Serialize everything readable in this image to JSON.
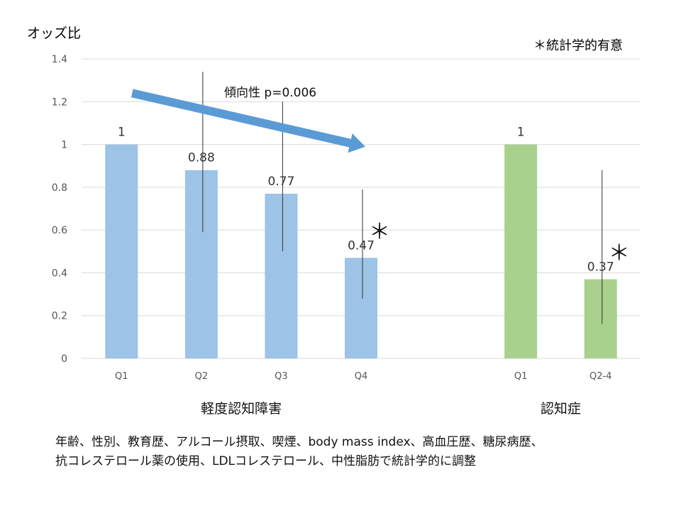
{
  "chart_data": {
    "type": "bar",
    "ylabel": "オッズ比",
    "ylim": [
      0,
      1.4
    ],
    "yticks": [
      "0",
      "0.2",
      "0.4",
      "0.6",
      "0.8",
      "1",
      "1.2",
      "1.4"
    ],
    "grid": true,
    "legend_note": "＊統計学的有意",
    "trend_label": "傾向性 p=0.006",
    "colors": {
      "group1": "#9dc3e6",
      "group2": "#a9d18e",
      "arrow": "#5b9bd5"
    },
    "groups": [
      {
        "label": "軽度認知障害",
        "categories": [
          "Q1",
          "Q2",
          "Q3",
          "Q4"
        ],
        "values": [
          1,
          0.88,
          0.77,
          0.47
        ],
        "value_labels": [
          "1",
          "0.88",
          "0.77",
          "0.47"
        ],
        "ci_low": [
          null,
          0.59,
          0.5,
          0.28
        ],
        "ci_high": [
          null,
          1.34,
          1.2,
          0.79
        ],
        "significant": [
          false,
          false,
          false,
          true
        ]
      },
      {
        "label": "認知症",
        "categories": [
          "Q1",
          "Q2-4"
        ],
        "values": [
          1,
          0.37
        ],
        "value_labels": [
          "1",
          "0.37"
        ],
        "ci_low": [
          null,
          0.16
        ],
        "ci_high": [
          null,
          0.88
        ],
        "significant": [
          false,
          true
        ]
      }
    ]
  },
  "significance_mark": "＊",
  "footnote": "年齢、性別、教育歴、アルコール摂取、喫煙、body mass index、高血圧歴、糖尿病歴、\n抗コレステロール薬の使用、LDLコレステロール、中性脂肪で統計学的に調整"
}
